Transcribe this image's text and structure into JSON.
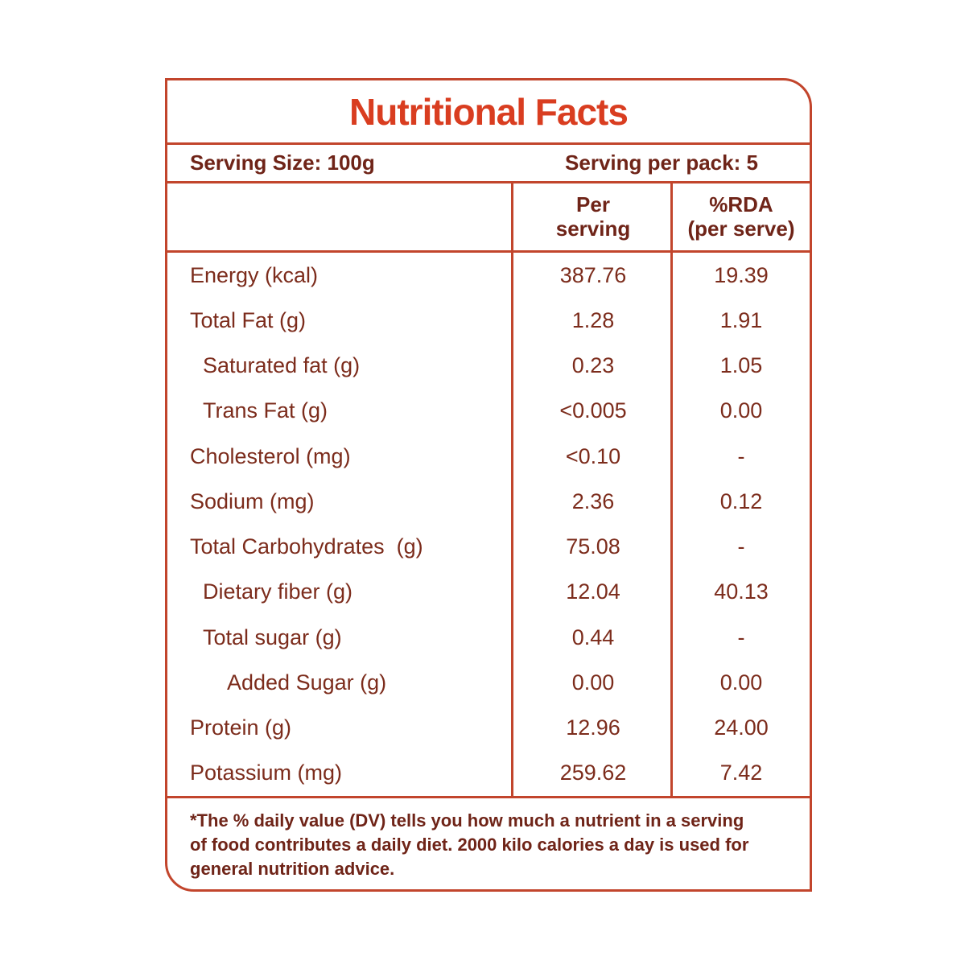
{
  "label": {
    "title": "Nutritional Facts",
    "serving_size": "Serving Size: 100g",
    "serving_per_pack": "Serving per pack: 5",
    "columns": {
      "per_serving_line1": "Per",
      "per_serving_line2": "serving",
      "rda_line1": "%RDA",
      "rda_line2": "(per serve)"
    },
    "rows": [
      {
        "name": "Energy (kcal)",
        "per_serving": "387.76",
        "rda": "19.39"
      },
      {
        "name": "Total Fat (g)",
        "per_serving": "1.28",
        "rda": "1.91"
      },
      {
        "name": "Saturated fat (g)",
        "per_serving": "0.23",
        "rda": "1.05"
      },
      {
        "name": "Trans Fat (g)",
        "per_serving": "<0.005",
        "rda": "0.00"
      },
      {
        "name": "Cholesterol (mg)",
        "per_serving": "<0.10",
        "rda": "-"
      },
      {
        "name": "Sodium (mg)",
        "per_serving": "2.36",
        "rda": "0.12"
      },
      {
        "name": "Total Carbohydrates  (g)",
        "per_serving": "75.08",
        "rda": "-"
      },
      {
        "name": "Dietary fiber (g)",
        "per_serving": "12.04",
        "rda": "40.13"
      },
      {
        "name": "Total sugar (g)",
        "per_serving": "0.44",
        "rda": "-"
      },
      {
        "name": "Added Sugar (g)",
        "per_serving": "0.00",
        "rda": "0.00"
      },
      {
        "name": "Protein (g)",
        "per_serving": "12.96",
        "rda": "24.00"
      },
      {
        "name": "Potassium (mg)",
        "per_serving": "259.62",
        "rda": "7.42"
      }
    ],
    "footnote_lines": [
      "*The % daily value (DV) tells you how much a nutrient in a serving",
      "of food contributes a daily diet. 2000 kilo calories a day is used for",
      "general nutrition advice."
    ],
    "colors": {
      "accent_title": "#d93d20",
      "border": "#c2452c",
      "text_dark": "#6f2418",
      "text_body": "#7c2c1c"
    }
  }
}
